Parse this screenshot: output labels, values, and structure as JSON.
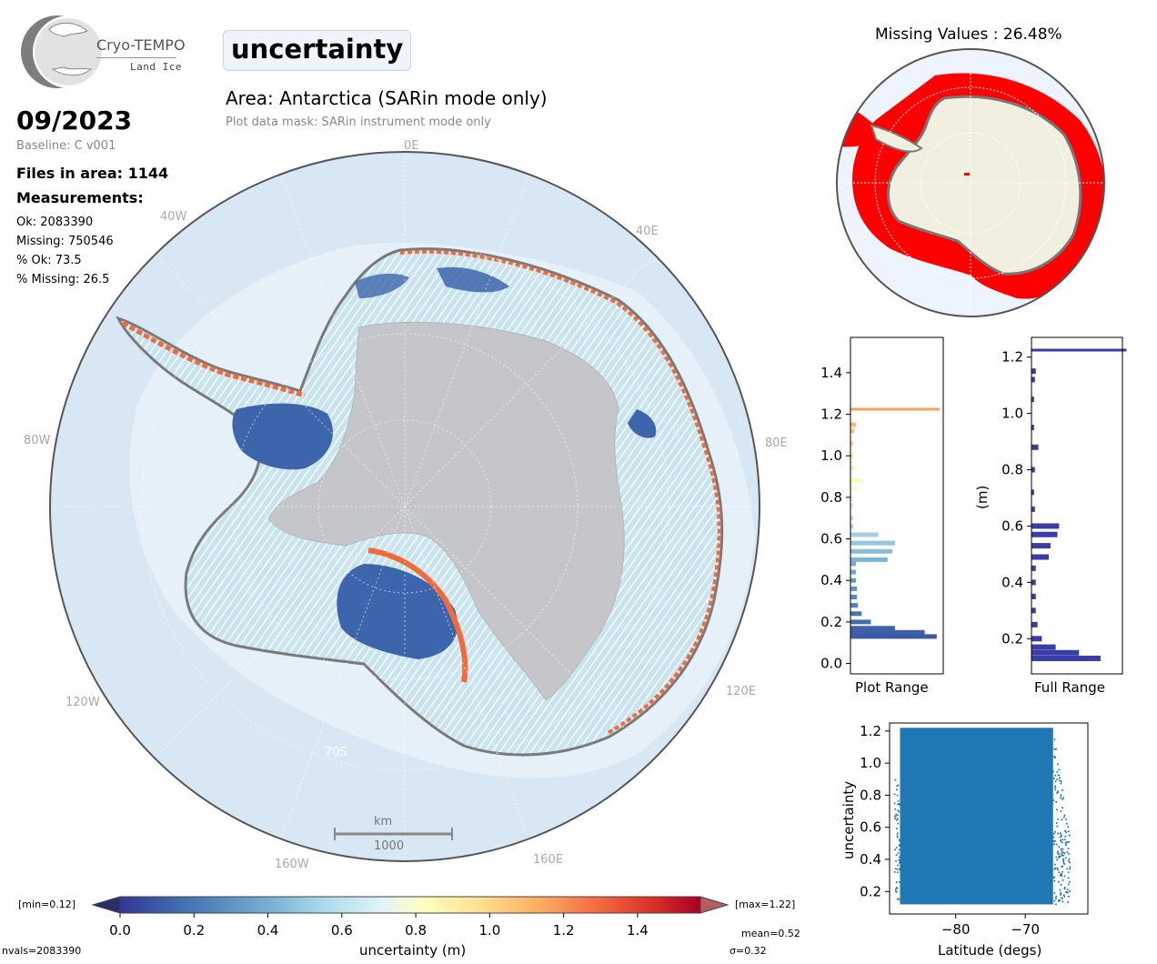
{
  "header": {
    "logo_line1": "Cryo-TEMPO",
    "logo_line2": "Land Ice",
    "variable": "uncertainty",
    "area_title": "Area: Antarctica (SARin mode only)",
    "mask_note": "Plot data mask: SARin instrument mode only"
  },
  "info": {
    "date": "09/2023",
    "baseline": "Baseline: C v001",
    "files": "Files in area: 1144",
    "measurements_heading": "Measurements:",
    "ok": "Ok: 2083390",
    "missing": "Missing: 750546",
    "pct_ok": "% Ok: 73.5",
    "pct_missing": "% Missing: 26.5"
  },
  "map": {
    "lon_labels": [
      "0E",
      "40E",
      "80E",
      "120E",
      "160E",
      "160W",
      "120W",
      "80W",
      "40W"
    ],
    "lat_label": "70S",
    "scale_unit": "km",
    "scale_value": "1000",
    "colors": {
      "ocean": "#d8e7f4",
      "ice_grey": "#c4c6c9",
      "coast": "#7a7a7a",
      "blue": "#3d65ab",
      "light_blue": "#b9dcea",
      "orange": "#f06a3a"
    }
  },
  "missing_map": {
    "title": "Missing Values : 26.48%",
    "colors": {
      "land": "#f1f0e0",
      "missing": "#ff0000",
      "ocean": "#eef4fd"
    }
  },
  "colorbar": {
    "min_label": "[min=0.12]",
    "max_label": "[max=1.22]",
    "ticks": [
      "0.0",
      "0.2",
      "0.4",
      "0.6",
      "0.8",
      "1.0",
      "1.2",
      "1.4"
    ],
    "label": "uncertainty (m)",
    "mean": "mean=0.52",
    "sigma": "σ=0.32",
    "nvals": "nvals=2083390",
    "range": [
      0.0,
      1.57
    ]
  },
  "chart_data": [
    {
      "type": "bar",
      "orientation": "horizontal",
      "title": "Plot Range",
      "xlabel": "Plot Range",
      "ylim": [
        -0.05,
        1.57
      ],
      "y_ticks": [
        "0.0",
        "0.2",
        "0.4",
        "0.6",
        "0.8",
        "1.0",
        "1.2",
        "1.4"
      ],
      "bins": [
        {
          "y": 0.13,
          "w": 0.93
        },
        {
          "y": 0.15,
          "w": 0.8
        },
        {
          "y": 0.17,
          "w": 0.48
        },
        {
          "y": 0.2,
          "w": 0.22
        },
        {
          "y": 0.24,
          "w": 0.12
        },
        {
          "y": 0.28,
          "w": 0.08
        },
        {
          "y": 0.32,
          "w": 0.07
        },
        {
          "y": 0.36,
          "w": 0.07
        },
        {
          "y": 0.4,
          "w": 0.06
        },
        {
          "y": 0.44,
          "w": 0.06
        },
        {
          "y": 0.48,
          "w": 0.06
        },
        {
          "y": 0.5,
          "w": 0.4
        },
        {
          "y": 0.54,
          "w": 0.45
        },
        {
          "y": 0.58,
          "w": 0.48
        },
        {
          "y": 0.62,
          "w": 0.3
        },
        {
          "y": 0.66,
          "w": 0.03
        },
        {
          "y": 0.7,
          "w": 0.03
        },
        {
          "y": 0.76,
          "w": 0.03
        },
        {
          "y": 0.8,
          "w": 0.04
        },
        {
          "y": 0.84,
          "w": 0.08
        },
        {
          "y": 0.88,
          "w": 0.12
        },
        {
          "y": 0.94,
          "w": 0.04
        },
        {
          "y": 1.0,
          "w": 0.03
        },
        {
          "y": 1.06,
          "w": 0.03
        },
        {
          "y": 1.12,
          "w": 0.04
        },
        {
          "y": 1.15,
          "w": 0.06
        },
        {
          "y": 1.22,
          "w": 0.96
        }
      ]
    },
    {
      "type": "bar",
      "orientation": "horizontal",
      "title": "Full Range",
      "xlabel": "Full Range",
      "ylabel": "(m)",
      "ylim": [
        0.075,
        1.27
      ],
      "y_ticks": [
        "0.2",
        "0.4",
        "0.6",
        "0.8",
        "1.0",
        "1.2"
      ],
      "color": "#3a3ca8",
      "bins": [
        {
          "y": 0.13,
          "w": 0.8
        },
        {
          "y": 0.15,
          "w": 0.55
        },
        {
          "y": 0.17,
          "w": 0.28
        },
        {
          "y": 0.2,
          "w": 0.12
        },
        {
          "y": 0.25,
          "w": 0.07
        },
        {
          "y": 0.3,
          "w": 0.05
        },
        {
          "y": 0.35,
          "w": 0.05
        },
        {
          "y": 0.4,
          "w": 0.05
        },
        {
          "y": 0.45,
          "w": 0.05
        },
        {
          "y": 0.49,
          "w": 0.2
        },
        {
          "y": 0.53,
          "w": 0.22
        },
        {
          "y": 0.57,
          "w": 0.3
        },
        {
          "y": 0.6,
          "w": 0.32
        },
        {
          "y": 0.66,
          "w": 0.04
        },
        {
          "y": 0.72,
          "w": 0.03
        },
        {
          "y": 0.8,
          "w": 0.04
        },
        {
          "y": 0.88,
          "w": 0.08
        },
        {
          "y": 0.95,
          "w": 0.03
        },
        {
          "y": 1.05,
          "w": 0.03
        },
        {
          "y": 1.12,
          "w": 0.04
        },
        {
          "y": 1.15,
          "w": 0.05
        },
        {
          "y": 1.22,
          "w": 1.1
        }
      ]
    },
    {
      "type": "scatter",
      "xlabel": "Latitude (degs)",
      "ylabel": "uncertainty",
      "xlim": [
        -89.5,
        -61
      ],
      "ylim": [
        0.06,
        1.25
      ],
      "x_ticks": [
        "−80",
        "−70"
      ],
      "y_ticks": [
        "0.2",
        "0.4",
        "0.6",
        "0.8",
        "1.0",
        "1.2"
      ],
      "color": "#1f77b4",
      "dense_region": {
        "x": [
          -88,
          -66
        ],
        "y": [
          0.12,
          1.22
        ]
      }
    }
  ]
}
